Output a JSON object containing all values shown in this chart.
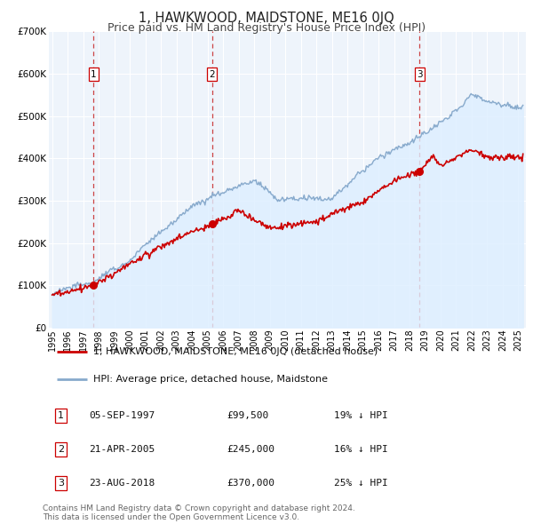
{
  "title": "1, HAWKWOOD, MAIDSTONE, ME16 0JQ",
  "subtitle": "Price paid vs. HM Land Registry's House Price Index (HPI)",
  "ylim": [
    0,
    700000
  ],
  "yticks": [
    0,
    100000,
    200000,
    300000,
    400000,
    500000,
    600000,
    700000
  ],
  "ytick_labels": [
    "£0",
    "£100K",
    "£200K",
    "£300K",
    "£400K",
    "£500K",
    "£600K",
    "£700K"
  ],
  "xlim_start": 1994.8,
  "xlim_end": 2025.5,
  "xtick_years": [
    1995,
    1996,
    1997,
    1998,
    1999,
    2000,
    2001,
    2002,
    2003,
    2004,
    2005,
    2006,
    2007,
    2008,
    2009,
    2010,
    2011,
    2012,
    2013,
    2014,
    2015,
    2016,
    2017,
    2018,
    2019,
    2020,
    2021,
    2022,
    2023,
    2024,
    2025
  ],
  "sale_color": "#cc0000",
  "hpi_color": "#88aacc",
  "hpi_fill_color": "#ddeeff",
  "vline_color": "#cc4444",
  "plot_bg_color": "#eef4fb",
  "grid_color": "#ffffff",
  "fig_bg_color": "#ffffff",
  "sale_points": [
    {
      "year": 1997.67,
      "price": 99500,
      "label": "1"
    },
    {
      "year": 2005.3,
      "price": 245000,
      "label": "2"
    },
    {
      "year": 2018.64,
      "price": 370000,
      "label": "3"
    }
  ],
  "legend_entries": [
    {
      "label": "1, HAWKWOOD, MAIDSTONE, ME16 0JQ (detached house)",
      "color": "#cc0000"
    },
    {
      "label": "HPI: Average price, detached house, Maidstone",
      "color": "#88aacc"
    }
  ],
  "table_rows": [
    {
      "num": "1",
      "date": "05-SEP-1997",
      "price": "£99,500",
      "pct": "19% ↓ HPI"
    },
    {
      "num": "2",
      "date": "21-APR-2005",
      "price": "£245,000",
      "pct": "16% ↓ HPI"
    },
    {
      "num": "3",
      "date": "23-AUG-2018",
      "price": "£370,000",
      "pct": "25% ↓ HPI"
    }
  ],
  "footnote": "Contains HM Land Registry data © Crown copyright and database right 2024.\nThis data is licensed under the Open Government Licence v3.0.",
  "title_fontsize": 10.5,
  "subtitle_fontsize": 9,
  "tick_fontsize": 7.5,
  "legend_fontsize": 8,
  "table_fontsize": 8,
  "footnote_fontsize": 6.5
}
